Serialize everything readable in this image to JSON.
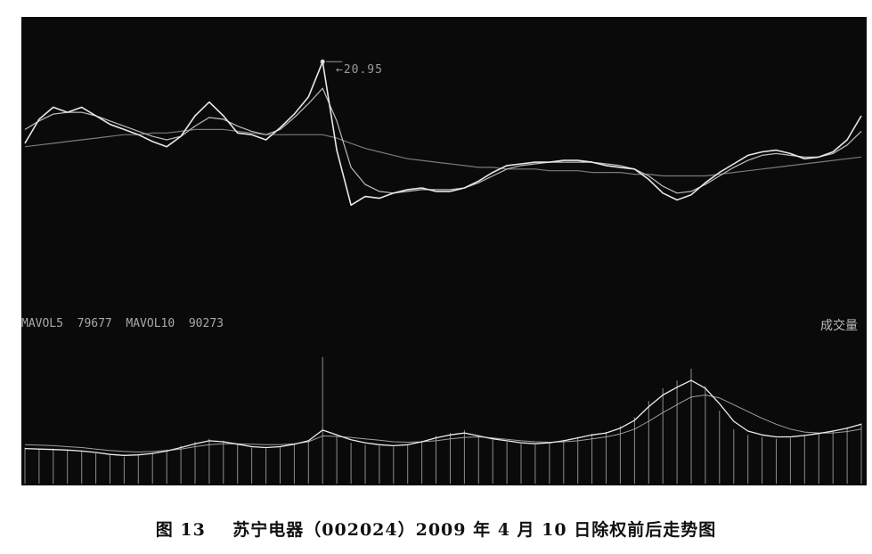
{
  "chart_data": {
    "type": "line",
    "caption": "图 13    苏宁电器（002024）2009 年 4 月 10 日除权前后走势图",
    "price_panel": {
      "peak_label": "20.95",
      "ylim": [
        8,
        22
      ],
      "price_values": [
        16.2,
        17.6,
        18.3,
        18.0,
        18.3,
        17.8,
        17.3,
        17.0,
        16.7,
        16.3,
        16.0,
        16.6,
        17.8,
        18.6,
        17.8,
        16.8,
        16.7,
        16.4,
        17.1,
        17.9,
        18.9,
        20.95,
        15.8,
        12.6,
        13.1,
        13.0,
        13.3,
        13.5,
        13.6,
        13.4,
        13.4,
        13.6,
        14.0,
        14.5,
        14.9,
        15.0,
        15.1,
        15.1,
        15.2,
        15.2,
        15.1,
        14.9,
        14.8,
        14.7,
        14.1,
        13.3,
        12.9,
        13.2,
        13.9,
        14.5,
        15.0,
        15.5,
        15.7,
        15.8,
        15.6,
        15.3,
        15.4,
        15.7,
        16.4,
        17.8
      ],
      "ma_short": [
        17.0,
        17.5,
        17.9,
        18.0,
        18.0,
        17.8,
        17.5,
        17.2,
        16.9,
        16.6,
        16.4,
        16.6,
        17.2,
        17.7,
        17.6,
        17.2,
        16.9,
        16.7,
        17.0,
        17.7,
        18.5,
        19.4,
        17.5,
        14.8,
        13.8,
        13.4,
        13.3,
        13.4,
        13.5,
        13.5,
        13.5,
        13.6,
        13.9,
        14.3,
        14.7,
        14.9,
        15.0,
        15.1,
        15.1,
        15.1,
        15.1,
        15.0,
        14.9,
        14.7,
        14.3,
        13.7,
        13.3,
        13.4,
        13.8,
        14.3,
        14.8,
        15.2,
        15.5,
        15.6,
        15.5,
        15.4,
        15.4,
        15.6,
        16.1,
        16.9
      ],
      "ma_long": [
        16.0,
        16.1,
        16.2,
        16.3,
        16.4,
        16.5,
        16.6,
        16.7,
        16.7,
        16.8,
        16.8,
        16.9,
        17.0,
        17.0,
        17.0,
        16.9,
        16.8,
        16.7,
        16.7,
        16.7,
        16.7,
        16.7,
        16.5,
        16.2,
        15.9,
        15.7,
        15.5,
        15.3,
        15.2,
        15.1,
        15.0,
        14.9,
        14.8,
        14.8,
        14.7,
        14.7,
        14.7,
        14.6,
        14.6,
        14.6,
        14.5,
        14.5,
        14.5,
        14.4,
        14.4,
        14.3,
        14.3,
        14.3,
        14.3,
        14.4,
        14.5,
        14.6,
        14.7,
        14.8,
        14.9,
        15.0,
        15.1,
        15.2,
        15.3,
        15.4
      ]
    },
    "volume_panel": {
      "readout": "MAVOL5  79677  MAVOL10  90273",
      "label": "成交量",
      "ylim": [
        0,
        300000
      ],
      "volume_values": [
        74000,
        70000,
        72000,
        69000,
        66000,
        62000,
        58000,
        55000,
        60000,
        64000,
        70000,
        78000,
        86000,
        92000,
        88000,
        80000,
        74000,
        72000,
        76000,
        82000,
        90000,
        260000,
        96000,
        84000,
        80000,
        78000,
        76000,
        80000,
        88000,
        98000,
        104000,
        110000,
        98000,
        90000,
        86000,
        82000,
        80000,
        84000,
        90000,
        96000,
        102000,
        106000,
        118000,
        136000,
        170000,
        196000,
        212000,
        236000,
        200000,
        150000,
        112000,
        100000,
        96000,
        92000,
        94000,
        100000,
        104000,
        110000,
        116000,
        124000
      ],
      "mavol5": [
        72000,
        71000,
        70000,
        69000,
        67000,
        64000,
        60000,
        58000,
        59000,
        62000,
        67000,
        74000,
        82000,
        88000,
        86000,
        81000,
        76000,
        74000,
        76000,
        81000,
        88000,
        110000,
        100000,
        90000,
        84000,
        80000,
        78000,
        80000,
        86000,
        94000,
        100000,
        104000,
        98000,
        92000,
        88000,
        84000,
        82000,
        84000,
        88000,
        94000,
        100000,
        104000,
        114000,
        130000,
        158000,
        182000,
        198000,
        212000,
        196000,
        164000,
        128000,
        108000,
        100000,
        96000,
        96000,
        99000,
        103000,
        108000,
        114000,
        122000
      ],
      "mavol10": [
        80000,
        79000,
        78000,
        76000,
        74000,
        71000,
        68000,
        66000,
        65000,
        66000,
        68000,
        71000,
        76000,
        80000,
        82000,
        82000,
        81000,
        80000,
        80000,
        82000,
        86000,
        98000,
        97000,
        95000,
        92000,
        89000,
        86000,
        85000,
        86000,
        88000,
        92000,
        95000,
        96000,
        94000,
        91000,
        88000,
        86000,
        85000,
        86000,
        88000,
        92000,
        96000,
        102000,
        112000,
        128000,
        146000,
        162000,
        178000,
        182000,
        176000,
        162000,
        148000,
        134000,
        122000,
        112000,
        106000,
        104000,
        104000,
        107000,
        112000
      ]
    },
    "colors": {
      "background": "#0a0a0a",
      "price_line": "#e8e8e8",
      "ma_short": "#bdbdbd",
      "ma_long": "#7a7a7a",
      "volume_bar": "#8c8c8c",
      "mavol5": "#ededed",
      "mavol10": "#a0a0a0"
    }
  }
}
